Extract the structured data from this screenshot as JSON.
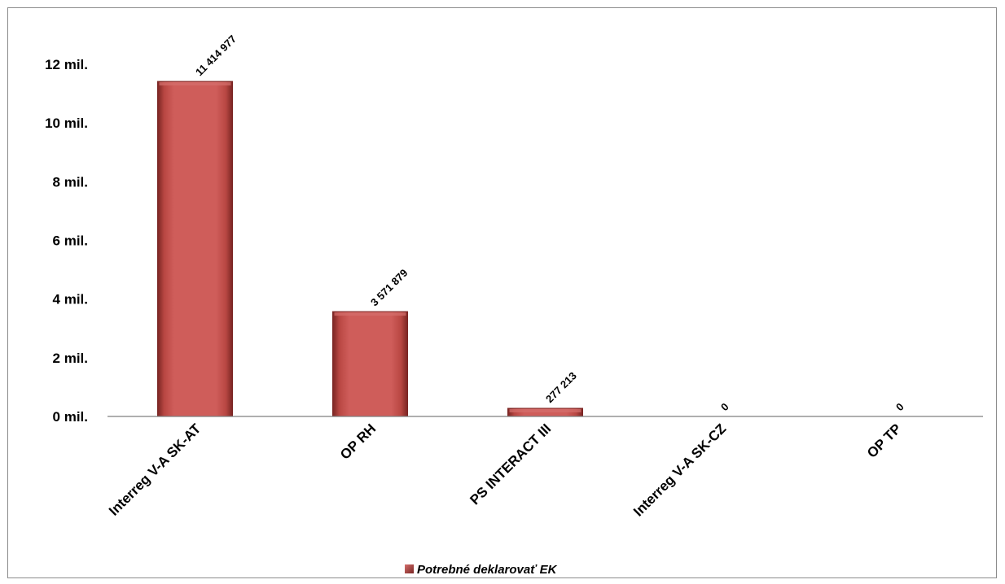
{
  "chart_data": {
    "type": "bar",
    "categories": [
      "Interreg V-A SK-AT",
      "OP RH",
      "PS INTERACT III",
      "Interreg V-A SK-CZ",
      "OP TP"
    ],
    "series": [
      {
        "name": "Potrebné deklarovať EK",
        "values": [
          11414977,
          3571879,
          277213,
          0,
          0
        ],
        "data_labels": [
          "11 414 977",
          "3 571 879",
          "277 213",
          "0",
          "0"
        ],
        "color": "#c0504d"
      }
    ],
    "y_ticks": [
      {
        "value": 0,
        "label": "0 mil."
      },
      {
        "value": 2000000,
        "label": "2 mil."
      },
      {
        "value": 4000000,
        "label": "4 mil."
      },
      {
        "value": 6000000,
        "label": "6 mil."
      },
      {
        "value": 8000000,
        "label": "8 mil."
      },
      {
        "value": 10000000,
        "label": "10 mil."
      },
      {
        "value": 12000000,
        "label": "12 mil."
      }
    ],
    "ylim": [
      0,
      12000000
    ],
    "grid": false,
    "legend_position": "bottom",
    "colors": {
      "bar": "#c0504d",
      "bar_dark": "#7a2523",
      "bar_light": "#d46f6c"
    }
  }
}
